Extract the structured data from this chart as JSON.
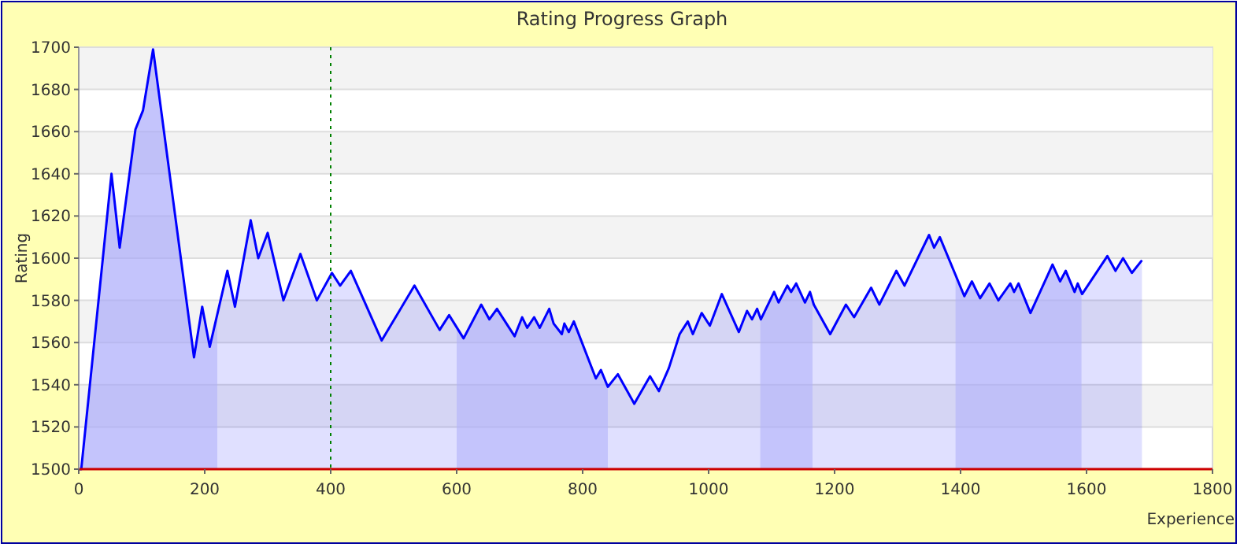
{
  "chart_data": {
    "type": "area",
    "title": "Rating Progress Graph",
    "xlabel": "Experience",
    "ylabel": "Rating",
    "xlim": [
      0,
      1800
    ],
    "xticks": [
      0,
      200,
      400,
      600,
      800,
      1000,
      1200,
      1400,
      1600,
      1800
    ],
    "ylim": [
      1500,
      1700
    ],
    "yticks": [
      1500,
      1520,
      1540,
      1560,
      1580,
      1600,
      1620,
      1640,
      1660,
      1680,
      1700
    ],
    "grid": "y",
    "series": [
      {
        "color": "#0000ff",
        "x": [
          0,
          4,
          52,
          65,
          90,
          102,
          118,
          183,
          196,
          208,
          236,
          248,
          273,
          285,
          300,
          325,
          352,
          378,
          402,
          415,
          432,
          481,
          533,
          573,
          588,
          611,
          639,
          652,
          664,
          692,
          704,
          712,
          723,
          732,
          747,
          754,
          767,
          771,
          778,
          786,
          821,
          829,
          840,
          856,
          882,
          907,
          921,
          937,
          954,
          967,
          975,
          989,
          1002,
          1021,
          1048,
          1061,
          1069,
          1077,
          1083,
          1104,
          1111,
          1125,
          1131,
          1139,
          1153,
          1161,
          1167,
          1193,
          1218,
          1231,
          1258,
          1271,
          1298,
          1311,
          1350,
          1358,
          1367,
          1406,
          1418,
          1431,
          1446,
          1460,
          1479,
          1485,
          1492,
          1511,
          1546,
          1558,
          1567,
          1581,
          1586,
          1593,
          1633,
          1646,
          1658,
          1672,
          1688
        ],
        "values": [
          1500,
          1500,
          1640,
          1605,
          1661,
          1670,
          1699,
          1553,
          1577,
          1558,
          1594,
          1577,
          1618,
          1600,
          1612,
          1580,
          1602,
          1580,
          1593,
          1587,
          1594,
          1561,
          1587,
          1566,
          1573,
          1562,
          1578,
          1571,
          1576,
          1563,
          1572,
          1567,
          1572,
          1567,
          1576,
          1569,
          1564,
          1569,
          1565,
          1570,
          1543,
          1547,
          1539,
          1545,
          1531,
          1544,
          1537,
          1548,
          1564,
          1570,
          1564,
          1574,
          1568,
          1583,
          1565,
          1575,
          1571,
          1576,
          1571,
          1584,
          1579,
          1587,
          1584,
          1588,
          1579,
          1584,
          1578,
          1564,
          1578,
          1572,
          1586,
          1578,
          1594,
          1587,
          1611,
          1605,
          1610,
          1582,
          1589,
          1581,
          1588,
          1580,
          1588,
          1584,
          1588,
          1574,
          1597,
          1589,
          1594,
          1584,
          1588,
          1583,
          1601,
          1594,
          1600,
          1593,
          1599
        ]
      }
    ],
    "bands": [
      {
        "axis": "x",
        "from": 0,
        "to": 220,
        "color": "#ccccfa"
      },
      {
        "axis": "x",
        "from": 600,
        "to": 840,
        "color": "#ccccfa"
      },
      {
        "axis": "x",
        "from": 1082,
        "to": 1165,
        "color": "#ccccfa"
      },
      {
        "axis": "x",
        "from": 1392,
        "to": 1592,
        "color": "#ccccfa"
      }
    ],
    "ref_lines": [
      {
        "axis": "x",
        "value": 400,
        "color": "#008000",
        "line_style": "dotted"
      }
    ]
  }
}
